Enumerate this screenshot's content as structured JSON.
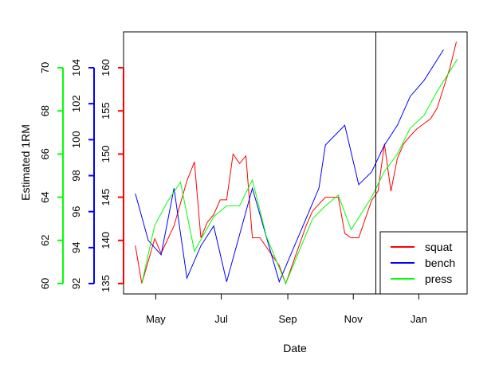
{
  "chart_data": {
    "type": "line",
    "xlabel": "Date",
    "ylabel": "Estimated 1RM",
    "x_ticks": [
      "May",
      "Jul",
      "Sep",
      "Nov",
      "Jan"
    ],
    "x_tick_dates": [
      "2014-05-01",
      "2014-07-01",
      "2014-09-01",
      "2014-11-01",
      "2015-01-01"
    ],
    "xlim": [
      "2014-04-01",
      "2015-02-15"
    ],
    "vline_date": "2014-11-22",
    "axes": [
      {
        "series": "squat",
        "color": "#ff0000",
        "ylim": [
          135,
          160
        ],
        "ticks": [
          "135",
          "140",
          "145",
          "150",
          "155",
          "160"
        ],
        "tick_values": [
          135,
          140,
          145,
          150,
          155,
          160
        ]
      },
      {
        "series": "bench",
        "color": "#0000ff",
        "ylim": [
          92,
          104
        ],
        "ticks": [
          "92",
          "94",
          "96",
          "98",
          "100",
          "102",
          "104"
        ],
        "tick_values": [
          92,
          94,
          96,
          98,
          100,
          102,
          104
        ]
      },
      {
        "series": "press",
        "color": "#00ff00",
        "ylim": [
          60,
          70
        ],
        "ticks": [
          "60",
          "62",
          "64",
          "66",
          "68",
          "70"
        ],
        "tick_values": [
          60,
          62,
          64,
          66,
          68,
          70
        ]
      }
    ],
    "legend": {
      "position": "bottom-right",
      "entries": [
        "squat",
        "bench",
        "press"
      ]
    },
    "series": [
      {
        "name": "squat",
        "color": "#ff0000",
        "points": [
          [
            "2014-04-12",
            139.4
          ],
          [
            "2014-04-18",
            135.0
          ],
          [
            "2014-04-30",
            140.2
          ],
          [
            "2014-05-06",
            138.5
          ],
          [
            "2014-05-18",
            141.7
          ],
          [
            "2014-05-30",
            146.9
          ],
          [
            "2014-06-06",
            149.1
          ],
          [
            "2014-06-12",
            140.3
          ],
          [
            "2014-06-18",
            142.1
          ],
          [
            "2014-06-24",
            143.0
          ],
          [
            "2014-06-30",
            144.7
          ],
          [
            "2014-07-06",
            144.7
          ],
          [
            "2014-07-12",
            150.0
          ],
          [
            "2014-07-18",
            148.9
          ],
          [
            "2014-07-24",
            149.8
          ],
          [
            "2014-07-30",
            140.3
          ],
          [
            "2014-08-06",
            140.3
          ],
          [
            "2014-08-24",
            137.1
          ],
          [
            "2014-08-30",
            135.0
          ],
          [
            "2014-09-18",
            141.7
          ],
          [
            "2014-09-24",
            143.4
          ],
          [
            "2014-09-30",
            144.2
          ],
          [
            "2014-10-06",
            145.0
          ],
          [
            "2014-10-18",
            145.0
          ],
          [
            "2014-10-24",
            140.8
          ],
          [
            "2014-10-30",
            140.3
          ],
          [
            "2014-11-06",
            140.3
          ],
          [
            "2014-11-18",
            144.6
          ],
          [
            "2014-11-24",
            145.7
          ],
          [
            "2014-11-30",
            151.2
          ],
          [
            "2014-12-06",
            145.7
          ],
          [
            "2014-12-12",
            149.5
          ],
          [
            "2014-12-18",
            151.2
          ],
          [
            "2014-12-24",
            152.1
          ],
          [
            "2014-12-30",
            152.9
          ],
          [
            "2015-01-12",
            154.1
          ],
          [
            "2015-01-18",
            155.3
          ],
          [
            "2015-01-30",
            160.0
          ],
          [
            "2015-02-05",
            163.0
          ]
        ]
      },
      {
        "name": "bench",
        "color": "#0000ff",
        "points": [
          [
            "2014-04-12",
            97.0
          ],
          [
            "2014-04-24",
            94.4
          ],
          [
            "2014-05-06",
            93.6
          ],
          [
            "2014-05-18",
            97.3
          ],
          [
            "2014-05-30",
            92.3
          ],
          [
            "2014-06-12",
            94.1
          ],
          [
            "2014-06-24",
            95.2
          ],
          [
            "2014-07-06",
            92.1
          ],
          [
            "2014-07-30",
            97.3
          ],
          [
            "2014-08-24",
            92.1
          ],
          [
            "2014-09-30",
            97.3
          ],
          [
            "2014-10-06",
            99.7
          ],
          [
            "2014-10-24",
            100.8
          ],
          [
            "2014-11-06",
            97.5
          ],
          [
            "2014-11-18",
            98.2
          ],
          [
            "2014-11-30",
            99.7
          ],
          [
            "2014-12-12",
            100.8
          ],
          [
            "2014-12-24",
            102.4
          ],
          [
            "2015-01-06",
            103.3
          ],
          [
            "2015-01-24",
            105.0
          ]
        ]
      },
      {
        "name": "press",
        "color": "#00ff00",
        "points": [
          [
            "2014-04-18",
            60.0
          ],
          [
            "2014-04-30",
            62.7
          ],
          [
            "2014-05-12",
            63.8
          ],
          [
            "2014-05-24",
            64.7
          ],
          [
            "2014-06-06",
            61.5
          ],
          [
            "2014-06-24",
            63.1
          ],
          [
            "2014-07-06",
            63.6
          ],
          [
            "2014-07-18",
            63.6
          ],
          [
            "2014-07-30",
            64.8
          ],
          [
            "2014-08-12",
            62.2
          ],
          [
            "2014-08-30",
            60.0
          ],
          [
            "2014-09-24",
            63.0
          ],
          [
            "2014-10-06",
            63.6
          ],
          [
            "2014-10-18",
            64.1
          ],
          [
            "2014-10-30",
            62.5
          ],
          [
            "2014-11-18",
            64.0
          ],
          [
            "2014-11-30",
            65.2
          ],
          [
            "2014-12-12",
            66.0
          ],
          [
            "2014-12-24",
            67.2
          ],
          [
            "2015-01-06",
            67.8
          ],
          [
            "2015-01-18",
            68.9
          ],
          [
            "2015-02-06",
            70.4
          ]
        ]
      }
    ]
  }
}
